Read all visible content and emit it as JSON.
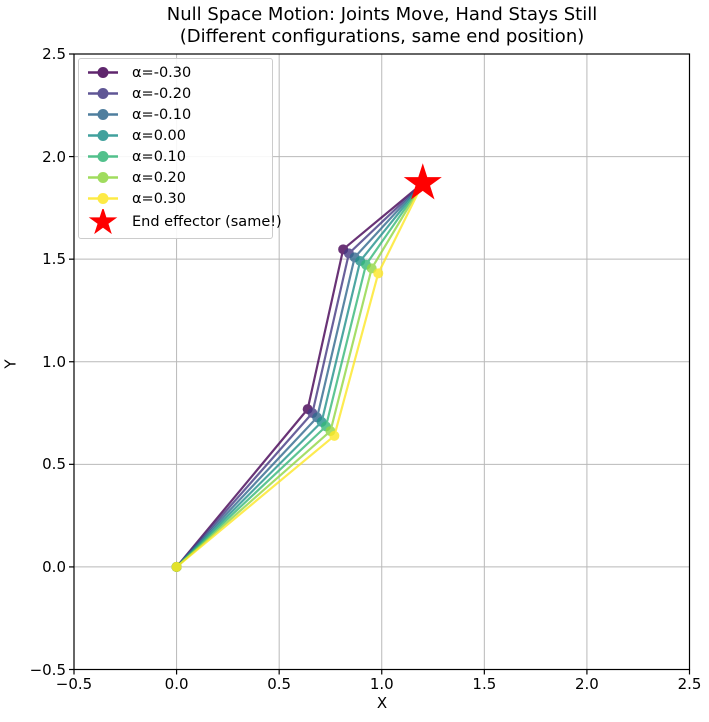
{
  "title": {
    "line1": "Null Space Motion: Joints Move, Hand Stays Still",
    "line2": "(Different configurations, same end position)"
  },
  "axes": {
    "xlabel": "X",
    "ylabel": "Y",
    "xlim": [
      -0.5,
      2.5
    ],
    "ylim": [
      -0.5,
      2.5
    ],
    "x_tick_labels": [
      "−0.5",
      "0.0",
      "0.5",
      "1.0",
      "1.5",
      "2.0",
      "2.5"
    ],
    "y_tick_labels": [
      "2.5",
      "2.0",
      "1.5",
      "1.0",
      "0.5",
      "0.0",
      "−0.5"
    ],
    "grid": true
  },
  "legend": {
    "position": "upper left",
    "entries": [
      {
        "label": "α=-0.30",
        "color": "#440154",
        "marker": "line-dot"
      },
      {
        "label": "α=-0.20",
        "color": "#443983",
        "marker": "line-dot"
      },
      {
        "label": "α=-0.10",
        "color": "#31688e",
        "marker": "line-dot"
      },
      {
        "label": "α=0.00",
        "color": "#21918c",
        "marker": "line-dot"
      },
      {
        "label": "α=0.10",
        "color": "#35b779",
        "marker": "line-dot"
      },
      {
        "label": "α=0.20",
        "color": "#90d743",
        "marker": "line-dot"
      },
      {
        "label": "α=0.30",
        "color": "#fde725",
        "marker": "line-dot"
      },
      {
        "label": "End effector (same!)",
        "color": "#ff0000",
        "marker": "star"
      }
    ]
  },
  "chart_data": {
    "type": "line",
    "title": "Null Space Motion: Joints Move, Hand Stays Still (Different configurations, same end position)",
    "xlabel": "X",
    "ylabel": "Y",
    "xlim": [
      -0.5,
      2.5
    ],
    "ylim": [
      -0.5,
      2.5
    ],
    "grid": true,
    "legend_position": "upper left",
    "description": "Seven 3-link planar arm configurations (link lengths 1.0, 0.8, 0.5) sharing base (0,0) and identical end-effector position; each polyline is base → joint1 → joint2 → end effector.",
    "series": [
      {
        "name": "α=-0.30",
        "alpha": -0.3,
        "color": "#440154",
        "points": [
          [
            0,
            0
          ],
          [
            0.639,
            0.769
          ],
          [
            0.812,
            1.548
          ],
          [
            1.2,
            1.87
          ]
        ]
      },
      {
        "name": "α=-0.20",
        "alpha": -0.2,
        "color": "#443983",
        "points": [
          [
            0,
            0
          ],
          [
            0.662,
            0.75
          ],
          [
            0.84,
            1.528
          ],
          [
            1.2,
            1.87
          ]
        ]
      },
      {
        "name": "α=-0.10",
        "alpha": -0.1,
        "color": "#31688e",
        "points": [
          [
            0,
            0
          ],
          [
            0.685,
            0.729
          ],
          [
            0.868,
            1.509
          ],
          [
            1.2,
            1.87
          ]
        ]
      },
      {
        "name": "α=0.00",
        "alpha": 0.0,
        "color": "#21918c",
        "points": [
          [
            0,
            0
          ],
          [
            0.707,
            0.707
          ],
          [
            0.895,
            1.491
          ],
          [
            1.2,
            1.87
          ]
        ]
      },
      {
        "name": "α=0.10",
        "alpha": 0.1,
        "color": "#35b779",
        "points": [
          [
            0,
            0
          ],
          [
            0.728,
            0.685
          ],
          [
            0.923,
            1.473
          ],
          [
            1.2,
            1.87
          ]
        ]
      },
      {
        "name": "α=0.20",
        "alpha": 0.2,
        "color": "#90d743",
        "points": [
          [
            0,
            0
          ],
          [
            0.75,
            0.662
          ],
          [
            0.951,
            1.455
          ],
          [
            1.2,
            1.87
          ]
        ]
      },
      {
        "name": "α=0.30",
        "alpha": 0.3,
        "color": "#fde725",
        "points": [
          [
            0,
            0
          ],
          [
            0.769,
            0.639
          ],
          [
            0.983,
            1.431
          ],
          [
            1.2,
            1.87
          ]
        ]
      }
    ],
    "end_effector": {
      "x": 1.2,
      "y": 1.87,
      "marker": "star",
      "color": "#ff0000",
      "label": "End effector (same!)"
    },
    "style": {
      "line_width": 2.2,
      "line_opacity": 0.8,
      "marker_radius": 5,
      "star_outer_radius": 20,
      "grid_color": "#b9b9b9",
      "spine_color": "#000000",
      "background": "#ffffff"
    }
  }
}
